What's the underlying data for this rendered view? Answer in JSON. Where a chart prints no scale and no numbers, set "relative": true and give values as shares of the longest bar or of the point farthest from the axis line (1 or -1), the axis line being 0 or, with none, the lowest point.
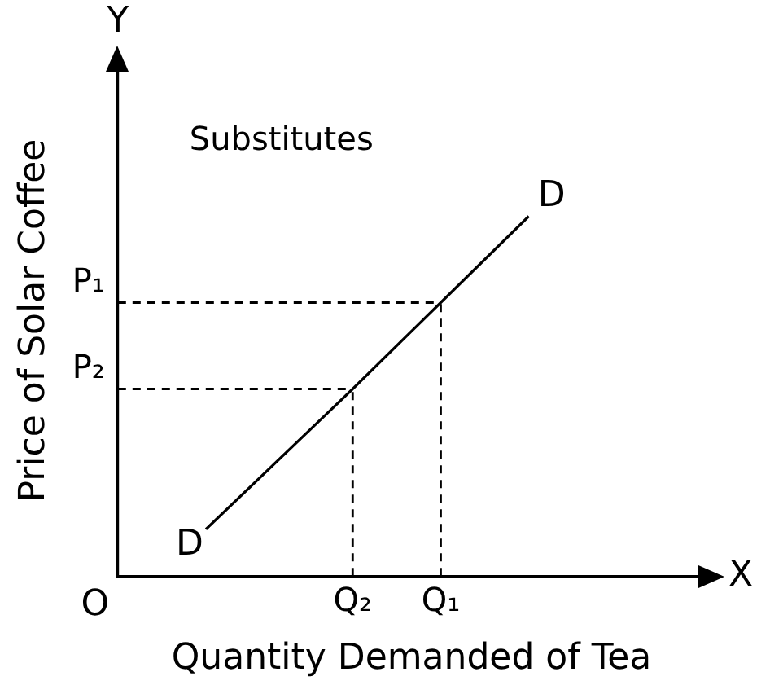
{
  "chart_data": {
    "type": "line",
    "title": "Substitutes",
    "xlabel": "Quantity Demanded of Tea",
    "ylabel": "Price of Solar Coffee",
    "relative": true,
    "categories": [
      null,
      null,
      null,
      null,
      null,
      null,
      null,
      null,
      "Q₂",
      null,
      null,
      "Q₁",
      null,
      null,
      null,
      null,
      null,
      null,
      null,
      null,
      null
    ],
    "series": [
      {
        "color": "#000000",
        "values": [
          null,
          null,
          null,
          0.13,
          null,
          null,
          null,
          null,
          0.52,
          null,
          null,
          0.76,
          null,
          null,
          1,
          null,
          null,
          null,
          null,
          null,
          null
        ]
      }
    ],
    "ref_lines": [
      {
        "axis": "x",
        "value": "Q₂",
        "color": "#000000",
        "line_style": "dashed"
      },
      {
        "axis": "x",
        "value": "Q₁",
        "color": "#000000",
        "line_style": "dashed"
      },
      {
        "axis": "y",
        "value": 0.52,
        "label": "P₂",
        "color": "#000000",
        "line_style": "dashed"
      },
      {
        "axis": "y",
        "value": 0.76,
        "label": "P₁",
        "color": "#000000",
        "line_style": "dashed"
      }
    ],
    "annotations": [
      "Y",
      "X",
      "O",
      "D",
      "D"
    ],
    "grid": false,
    "legend": false,
    "marker": "none"
  }
}
